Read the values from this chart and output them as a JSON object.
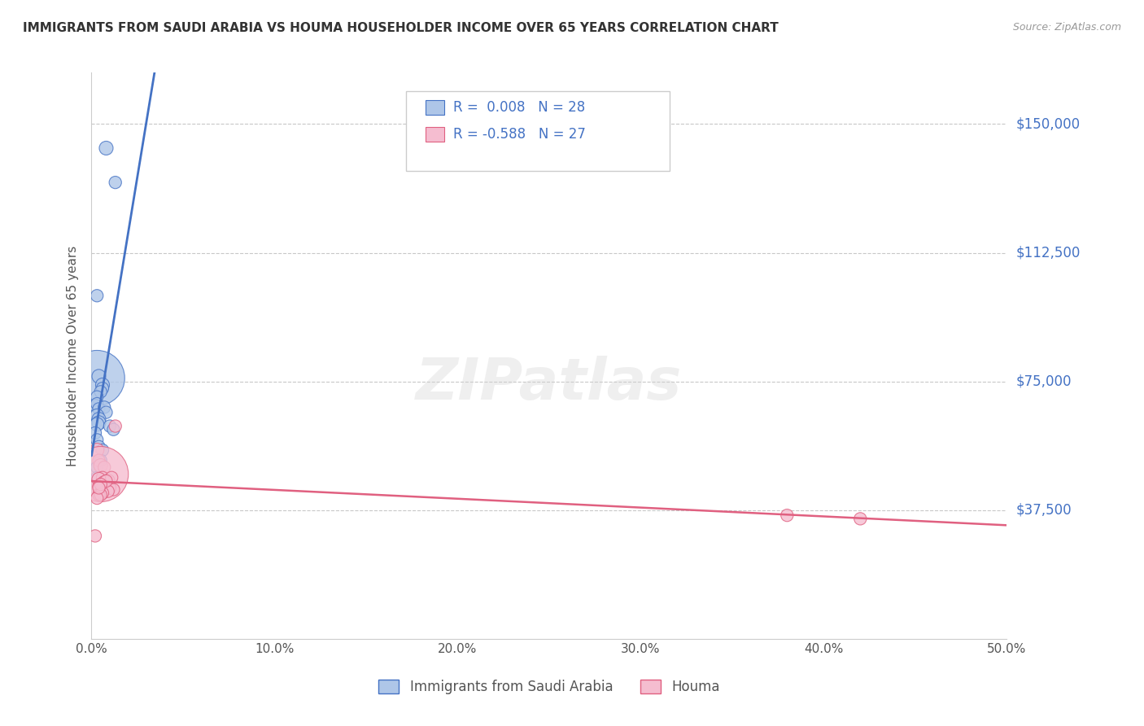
{
  "title": "IMMIGRANTS FROM SAUDI ARABIA VS HOUMA HOUSEHOLDER INCOME OVER 65 YEARS CORRELATION CHART",
  "source": "Source: ZipAtlas.com",
  "ylabel": "Householder Income Over 65 years",
  "yticks": [
    0,
    37500,
    75000,
    112500,
    150000
  ],
  "ytick_labels": [
    "",
    "$37,500",
    "$75,000",
    "$112,500",
    "$150,000"
  ],
  "xlim": [
    0.0,
    0.5
  ],
  "ylim": [
    15000,
    165000
  ],
  "legend_label1": "Immigrants from Saudi Arabia",
  "legend_label2": "Houma",
  "r1": 0.008,
  "n1": 28,
  "r2": -0.588,
  "n2": 27,
  "blue_color": "#aec6e8",
  "blue_line_color": "#4472c4",
  "pink_color": "#f5bdd0",
  "pink_line_color": "#e06080",
  "blue_scatter_x": [
    0.008,
    0.013,
    0.003,
    0.003,
    0.004,
    0.006,
    0.006,
    0.005,
    0.003,
    0.002,
    0.003,
    0.004,
    0.007,
    0.008,
    0.003,
    0.004,
    0.004,
    0.003,
    0.01,
    0.012,
    0.002,
    0.003,
    0.004,
    0.006,
    0.005,
    0.003,
    0.003,
    0.005
  ],
  "blue_scatter_y": [
    143000,
    133000,
    100000,
    76000,
    76500,
    74000,
    73000,
    72000,
    70500,
    68000,
    68500,
    67000,
    67500,
    66000,
    65000,
    64000,
    63000,
    62500,
    62000,
    61000,
    60000,
    58000,
    56000,
    55000,
    52000,
    50000,
    47000,
    44000
  ],
  "blue_scatter_size": [
    50,
    40,
    40,
    800,
    50,
    50,
    40,
    40,
    40,
    40,
    40,
    40,
    40,
    40,
    50,
    50,
    50,
    50,
    40,
    40,
    40,
    40,
    40,
    40,
    40,
    40,
    40,
    40
  ],
  "pink_scatter_x": [
    0.003,
    0.004,
    0.005,
    0.007,
    0.005,
    0.006,
    0.004,
    0.009,
    0.007,
    0.005,
    0.004,
    0.006,
    0.01,
    0.012,
    0.009,
    0.006,
    0.004,
    0.005,
    0.003,
    0.38,
    0.42,
    0.002,
    0.013,
    0.011,
    0.008,
    0.005,
    0.004
  ],
  "pink_scatter_y": [
    55000,
    52000,
    50500,
    50000,
    48000,
    47000,
    46500,
    46000,
    45500,
    45000,
    44500,
    44000,
    44000,
    43500,
    43000,
    42500,
    42000,
    42000,
    41000,
    36000,
    35000,
    30000,
    62000,
    47000,
    46000,
    45000,
    44000
  ],
  "pink_scatter_size": [
    50,
    40,
    50,
    40,
    800,
    40,
    50,
    50,
    50,
    40,
    40,
    40,
    40,
    40,
    40,
    40,
    40,
    40,
    40,
    40,
    40,
    40,
    40,
    40,
    40,
    40,
    40
  ],
  "watermark": "ZIPatlas",
  "background_color": "#ffffff",
  "grid_color": "#c8c8c8",
  "title_color": "#333333",
  "axis_label_color": "#555555",
  "ytick_color": "#4472c4",
  "xtick_color": "#555555"
}
